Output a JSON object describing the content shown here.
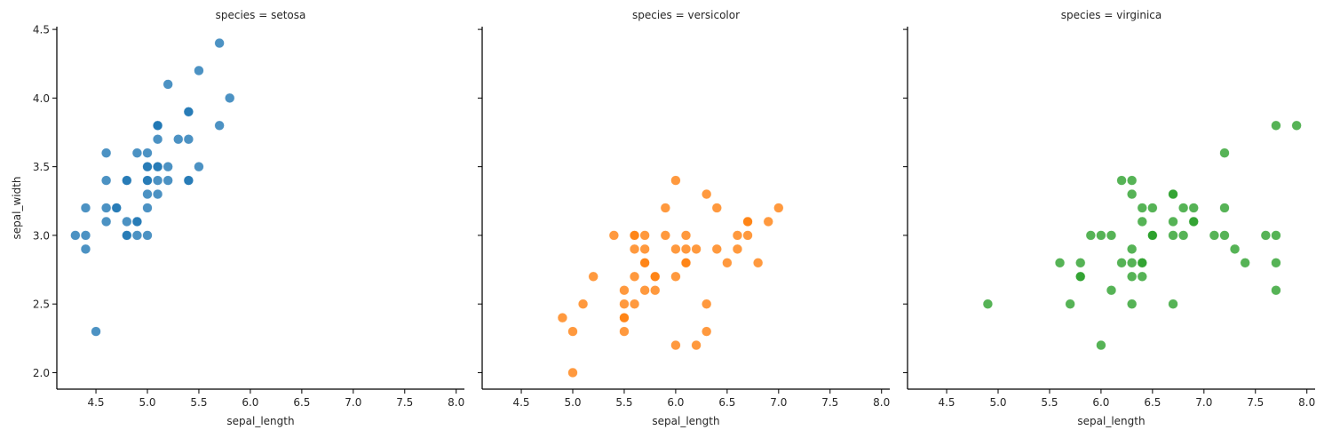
{
  "chart_data": {
    "type": "scatter",
    "layout": "facet-grid (1 row x 3 columns), shared y-axis",
    "xlabel": "sepal_length",
    "ylabel": "sepal_width",
    "xlim": [
      4.12,
      8.08
    ],
    "ylim": [
      1.88,
      4.52
    ],
    "xticks": [
      4.5,
      5.0,
      5.5,
      6.0,
      6.5,
      7.0,
      7.5,
      8.0
    ],
    "xtick_labels": [
      "4.5",
      "5.0",
      "5.5",
      "6.0",
      "6.5",
      "7.0",
      "7.5",
      "8.0"
    ],
    "yticks": [
      2.0,
      2.5,
      3.0,
      3.5,
      4.0,
      4.5
    ],
    "ytick_labels": [
      "2.0",
      "2.5",
      "3.0",
      "3.5",
      "4.0",
      "4.5"
    ],
    "grid": false,
    "legend": null,
    "marker_alpha": 0.8,
    "panels": [
      {
        "title": "species = setosa",
        "color": "#1f77b4",
        "x": [
          5.1,
          4.9,
          4.7,
          4.6,
          5.0,
          5.4,
          4.6,
          5.0,
          4.4,
          4.9,
          5.4,
          4.8,
          4.8,
          4.3,
          5.8,
          5.7,
          5.4,
          5.1,
          5.7,
          5.1,
          5.4,
          5.1,
          4.6,
          5.1,
          4.8,
          5.0,
          5.0,
          5.2,
          5.2,
          4.7,
          4.8,
          5.4,
          5.2,
          5.5,
          4.9,
          5.0,
          5.5,
          4.9,
          4.4,
          5.1,
          5.0,
          4.5,
          4.4,
          5.0,
          5.1,
          4.8,
          5.1,
          4.6,
          5.3,
          5.0
        ],
        "y": [
          3.5,
          3.0,
          3.2,
          3.1,
          3.6,
          3.9,
          3.4,
          3.4,
          2.9,
          3.1,
          3.7,
          3.4,
          3.0,
          3.0,
          4.0,
          4.4,
          3.9,
          3.5,
          3.8,
          3.8,
          3.4,
          3.7,
          3.6,
          3.3,
          3.4,
          3.0,
          3.4,
          3.5,
          3.4,
          3.2,
          3.1,
          3.4,
          4.1,
          4.2,
          3.1,
          3.2,
          3.5,
          3.6,
          3.0,
          3.4,
          3.5,
          2.3,
          3.2,
          3.5,
          3.8,
          3.0,
          3.8,
          3.2,
          3.7,
          3.3
        ]
      },
      {
        "title": "species = versicolor",
        "color": "#ff7f0e",
        "x": [
          7.0,
          6.4,
          6.9,
          5.5,
          6.5,
          5.7,
          6.3,
          4.9,
          6.6,
          5.2,
          5.0,
          5.9,
          6.0,
          6.1,
          5.6,
          6.7,
          5.6,
          5.8,
          6.2,
          5.6,
          5.9,
          6.1,
          6.3,
          6.1,
          6.4,
          6.6,
          6.8,
          6.7,
          6.0,
          5.7,
          5.5,
          5.5,
          5.8,
          6.0,
          5.4,
          6.0,
          6.7,
          6.3,
          5.6,
          5.5,
          5.5,
          6.1,
          5.8,
          5.0,
          5.6,
          5.7,
          5.7,
          6.2,
          5.1,
          5.7
        ],
        "y": [
          3.2,
          3.2,
          3.1,
          2.3,
          2.8,
          2.8,
          3.3,
          2.4,
          2.9,
          2.7,
          2.0,
          3.0,
          2.2,
          2.9,
          2.9,
          3.1,
          3.0,
          2.7,
          2.2,
          2.5,
          3.2,
          2.8,
          2.5,
          2.8,
          2.9,
          3.0,
          2.8,
          3.0,
          2.9,
          2.6,
          2.4,
          2.4,
          2.7,
          2.7,
          3.0,
          3.4,
          3.1,
          2.3,
          3.0,
          2.5,
          2.6,
          3.0,
          2.6,
          2.3,
          2.7,
          3.0,
          2.9,
          2.9,
          2.5,
          2.8
        ]
      },
      {
        "title": "species = virginica",
        "color": "#2ca02c",
        "x": [
          6.3,
          5.8,
          7.1,
          6.3,
          6.5,
          7.6,
          4.9,
          7.3,
          6.7,
          7.2,
          6.5,
          6.4,
          6.8,
          5.7,
          5.8,
          6.4,
          6.5,
          7.7,
          7.7,
          6.0,
          6.9,
          5.6,
          7.7,
          6.3,
          6.7,
          7.2,
          6.2,
          6.1,
          6.4,
          7.2,
          7.4,
          7.9,
          6.4,
          6.3,
          6.1,
          7.7,
          6.3,
          6.4,
          6.0,
          6.9,
          6.7,
          6.9,
          5.8,
          6.8,
          6.7,
          6.7,
          6.3,
          6.5,
          6.2,
          5.9
        ],
        "y": [
          3.3,
          2.7,
          3.0,
          2.9,
          3.0,
          3.0,
          2.5,
          2.9,
          2.5,
          3.6,
          3.2,
          2.7,
          3.0,
          2.5,
          2.8,
          3.2,
          3.0,
          3.8,
          2.6,
          2.2,
          3.2,
          2.8,
          2.8,
          2.7,
          3.3,
          3.2,
          2.8,
          3.0,
          2.8,
          3.0,
          2.8,
          3.8,
          2.8,
          2.8,
          2.6,
          3.0,
          3.4,
          3.1,
          3.0,
          3.1,
          3.1,
          3.1,
          2.7,
          3.2,
          3.3,
          3.0,
          2.5,
          3.0,
          3.4,
          3.0
        ]
      }
    ]
  }
}
